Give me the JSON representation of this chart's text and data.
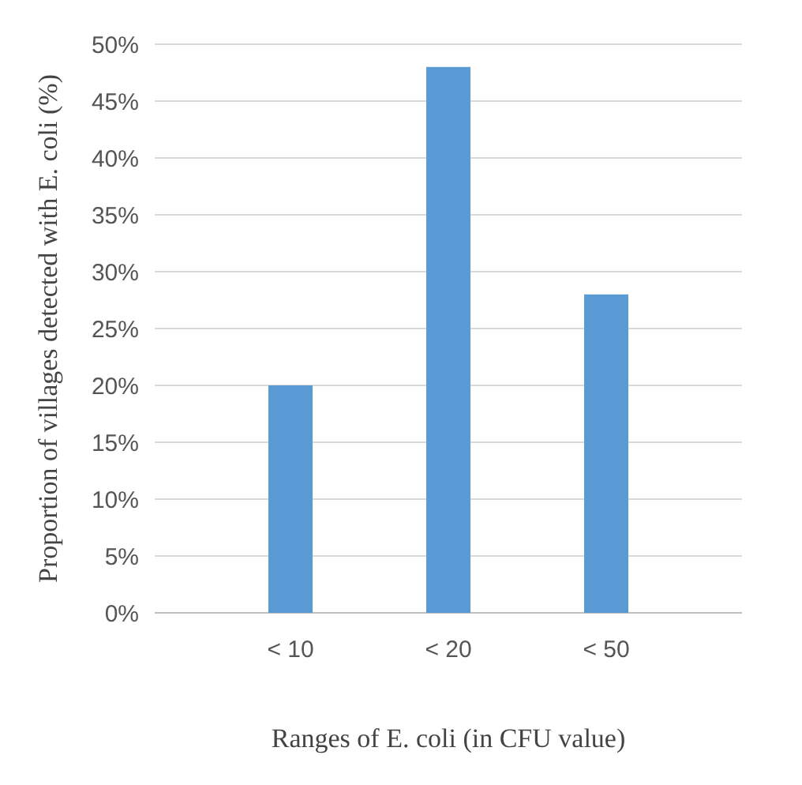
{
  "chart_data": {
    "type": "bar",
    "xlabel": "Ranges of E. coli (in CFU value)",
    "ylabel": "Proportion of villages detected with E. coli (%)",
    "categories": [
      "< 10",
      "< 20",
      "< 50"
    ],
    "values": [
      20,
      48,
      28
    ],
    "color": "#5b9bd5",
    "ylim": [
      0,
      50
    ],
    "yticks": [
      {
        "value": 0,
        "label": "0%"
      },
      {
        "value": 5,
        "label": "5%"
      },
      {
        "value": 10,
        "label": "10%"
      },
      {
        "value": 15,
        "label": "15%"
      },
      {
        "value": 20,
        "label": "20%"
      },
      {
        "value": 25,
        "label": "25%"
      },
      {
        "value": 30,
        "label": "30%"
      },
      {
        "value": 35,
        "label": "35%"
      },
      {
        "value": 40,
        "label": "40%"
      },
      {
        "value": 45,
        "label": "45%"
      },
      {
        "value": 50,
        "label": "50%"
      }
    ],
    "grid": "y"
  }
}
